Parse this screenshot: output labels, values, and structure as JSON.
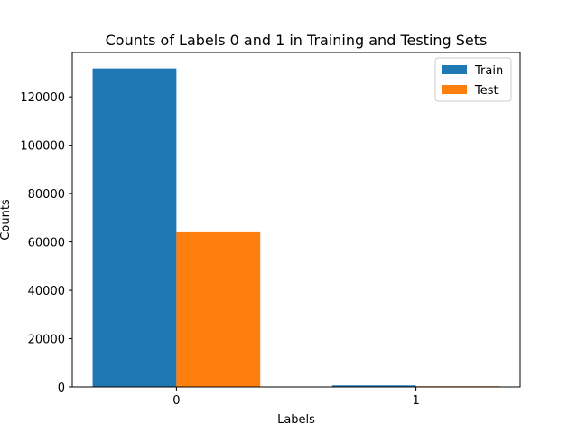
{
  "chart_data": {
    "type": "bar",
    "title": "Counts of Labels 0 and 1 in Training and Testing Sets",
    "xlabel": "Labels",
    "ylabel": "Counts",
    "categories": [
      "0",
      "1"
    ],
    "series": [
      {
        "name": "Train",
        "values": [
          131800,
          650
        ],
        "color": "#1f77b4"
      },
      {
        "name": "Test",
        "values": [
          64000,
          300
        ],
        "color": "#ff7f0e"
      }
    ],
    "ylim": [
      0,
      138400
    ],
    "yticks": [
      0,
      20000,
      40000,
      60000,
      80000,
      100000,
      120000
    ],
    "ytick_labels": [
      "0",
      "20000",
      "40000",
      "60000",
      "80000",
      "100000",
      "120000"
    ],
    "grid": false,
    "legend_position": "top-right"
  }
}
